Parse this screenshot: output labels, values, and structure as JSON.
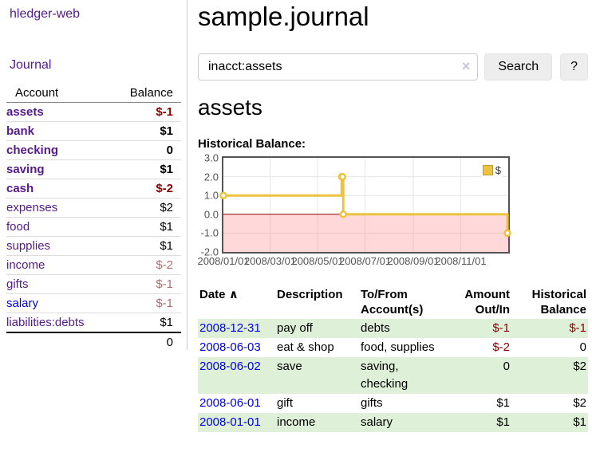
{
  "app": {
    "brand": "hledger-web"
  },
  "sidebar": {
    "journal_link": "Journal",
    "table_headers": {
      "account": "Account",
      "balance": "Balance"
    },
    "accounts": [
      {
        "name": "assets",
        "depth": 1,
        "bold": true,
        "link_color": "purple",
        "balance": "$-1",
        "balance_style": "negative"
      },
      {
        "name": "bank",
        "depth": 2,
        "bold": true,
        "link_color": "purple",
        "balance": "$1",
        "balance_style": "normal"
      },
      {
        "name": "checking",
        "depth": 3,
        "bold": true,
        "link_color": "purple",
        "balance": "0",
        "balance_style": "normal"
      },
      {
        "name": "saving",
        "depth": 3,
        "bold": true,
        "link_color": "purple",
        "balance": "$1",
        "balance_style": "normal"
      },
      {
        "name": "cash",
        "depth": 2,
        "bold": true,
        "link_color": "purple",
        "balance": "$-2",
        "balance_style": "negative"
      },
      {
        "name": "expenses",
        "depth": 1,
        "bold": false,
        "link_color": "purple",
        "balance": "$2",
        "balance_style": "normal"
      },
      {
        "name": "food",
        "depth": 2,
        "bold": false,
        "link_color": "purple",
        "balance": "$1",
        "balance_style": "normal"
      },
      {
        "name": "supplies",
        "depth": 2,
        "bold": false,
        "link_color": "purple",
        "balance": "$1",
        "balance_style": "normal"
      },
      {
        "name": "income",
        "depth": 1,
        "bold": false,
        "link_color": "purple",
        "balance": "$-2",
        "balance_style": "muted"
      },
      {
        "name": "gifts",
        "depth": 2,
        "bold": false,
        "link_color": "purple",
        "balance": "$-1",
        "balance_style": "muted"
      },
      {
        "name": "salary",
        "depth": 2,
        "bold": false,
        "link_color": "blue",
        "balance": "$-1",
        "balance_style": "muted"
      },
      {
        "name": "liabilities:debts",
        "depth": 1,
        "bold": false,
        "link_color": "purple",
        "balance": "$1",
        "balance_style": "normal"
      }
    ],
    "total": "0"
  },
  "header": {
    "title": "sample.journal"
  },
  "search": {
    "value": "inacct:assets",
    "clear_icon": "×",
    "button_label": "Search",
    "help_label": "?"
  },
  "account_page": {
    "heading": "assets",
    "chart_label": "Historical Balance:"
  },
  "chart_data": {
    "type": "line",
    "step": true,
    "title": "Historical Balance of assets",
    "legend_position": "top-right",
    "series": [
      {
        "name": "$",
        "color": "#EDC240",
        "points": [
          [
            "2008-01-01",
            1
          ],
          [
            "2008-06-01",
            2
          ],
          [
            "2008-06-02",
            2
          ],
          [
            "2008-06-03",
            0
          ],
          [
            "2008-12-31",
            -1
          ]
        ]
      }
    ],
    "x_range": [
      "2008-01-01",
      "2009-01-01"
    ],
    "x_tick_dates": [
      "2008-01-01",
      "2008-03-01",
      "2008-05-01",
      "2008-07-01",
      "2008-09-01",
      "2008-11-01"
    ],
    "x_tick_labels": [
      "2008/01/01",
      "2008/03/01",
      "2008/05/01",
      "2008/07/01",
      "2008/09/01",
      "2008/11/01"
    ],
    "y_ticks": [
      3.0,
      2.0,
      1.0,
      0.0,
      -1.0,
      -2.0
    ],
    "ylim": [
      -2,
      3
    ],
    "grid": true,
    "grid_color": "#E6E6E6",
    "zero_line_color": "#8B0000",
    "negative_region_fill": "rgba(255,120,120,0.28)",
    "marker_fill": "#FFFFFF"
  },
  "register": {
    "columns": {
      "date": "Date",
      "sort_indicator": "∧",
      "description": "Description",
      "accounts": "To/From Account(s)",
      "amount": "Amount Out/In",
      "balance": "Historical Balance"
    },
    "rows": [
      {
        "date": "2008-12-31",
        "description": "pay off",
        "accounts": [
          "debts"
        ],
        "amount": "$-1",
        "amount_negative": true,
        "balance": "$-1",
        "balance_negative": true,
        "highlighted": true
      },
      {
        "date": "2008-06-03",
        "description": "eat & shop",
        "accounts": [
          "food",
          "supplies"
        ],
        "amount": "$-2",
        "amount_negative": true,
        "balance": "0",
        "balance_negative": false,
        "highlighted": false
      },
      {
        "date": "2008-06-02",
        "description": "save",
        "accounts": [
          "saving",
          "checking"
        ],
        "amount": "0",
        "amount_negative": false,
        "balance": "$2",
        "balance_negative": false,
        "highlighted": true
      },
      {
        "date": "2008-06-01",
        "description": "gift",
        "accounts": [
          "gifts"
        ],
        "amount": "$1",
        "amount_negative": false,
        "balance": "$2",
        "balance_negative": false,
        "highlighted": false
      },
      {
        "date": "2008-01-01",
        "description": "income",
        "accounts": [
          "salary"
        ],
        "amount": "$1",
        "amount_negative": false,
        "balance": "$1",
        "balance_negative": false,
        "highlighted": true
      }
    ]
  },
  "colors": {
    "link_purple": "#551A8B",
    "link_blue": "#0000EE",
    "negative_red": "#8B0000",
    "muted_negative": "#B36B6B",
    "row_highlight_green": "#DFF0D8",
    "series_gold": "#EDC240",
    "axis_text": "#545454"
  }
}
